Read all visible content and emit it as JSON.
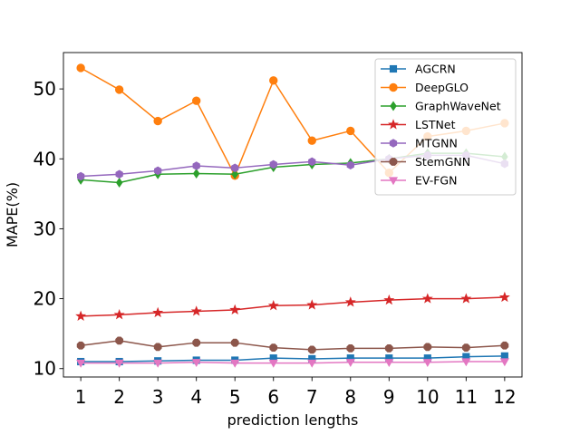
{
  "chart_data": {
    "type": "line",
    "title": "",
    "xlabel": "prediction lengths",
    "ylabel": "MAPE(%)",
    "x": [
      1,
      2,
      3,
      4,
      5,
      6,
      7,
      8,
      9,
      10,
      11,
      12
    ],
    "xlim": [
      0.55,
      12.45
    ],
    "ylim": [
      8.8,
      55.2
    ],
    "yticks": [
      10,
      20,
      30,
      40,
      50
    ],
    "legend_position": "top-right",
    "series": [
      {
        "name": "AGCRN",
        "color": "#1f77b4",
        "marker": "square",
        "values": [
          11.0,
          11.0,
          11.1,
          11.2,
          11.2,
          11.5,
          11.4,
          11.5,
          11.5,
          11.5,
          11.7,
          11.8
        ]
      },
      {
        "name": "DeepGLO",
        "color": "#ff7f0e",
        "marker": "circle",
        "values": [
          53.0,
          49.9,
          45.4,
          48.3,
          37.6,
          51.2,
          42.6,
          44.0,
          38.0,
          43.2,
          44.0,
          45.1
        ]
      },
      {
        "name": "GraphWaveNet",
        "color": "#2ca02c",
        "marker": "diamond",
        "values": [
          37.0,
          36.6,
          37.8,
          37.9,
          37.8,
          38.8,
          39.2,
          39.4,
          40.0,
          40.8,
          40.8,
          40.3
        ]
      },
      {
        "name": "LSTNet",
        "color": "#d62728",
        "marker": "star",
        "values": [
          17.5,
          17.7,
          18.0,
          18.2,
          18.4,
          19.0,
          19.1,
          19.5,
          19.8,
          20.0,
          20.0,
          20.2
        ]
      },
      {
        "name": "MTGNN",
        "color": "#9467bd",
        "marker": "hexagon",
        "values": [
          37.5,
          37.8,
          38.3,
          39.0,
          38.7,
          39.2,
          39.6,
          39.1,
          40.0,
          40.5,
          40.5,
          39.3
        ]
      },
      {
        "name": "StemGNN",
        "color": "#8c564b",
        "marker": "octagon",
        "values": [
          13.3,
          14.0,
          13.1,
          13.7,
          13.7,
          13.0,
          12.7,
          12.9,
          12.9,
          13.1,
          13.0,
          13.3
        ]
      },
      {
        "name": "EV-FGN",
        "color": "#e377c2",
        "marker": "triangle-down",
        "values": [
          10.8,
          10.8,
          10.8,
          10.9,
          10.8,
          10.8,
          10.8,
          10.9,
          10.9,
          10.9,
          11.0,
          11.0
        ]
      }
    ]
  }
}
